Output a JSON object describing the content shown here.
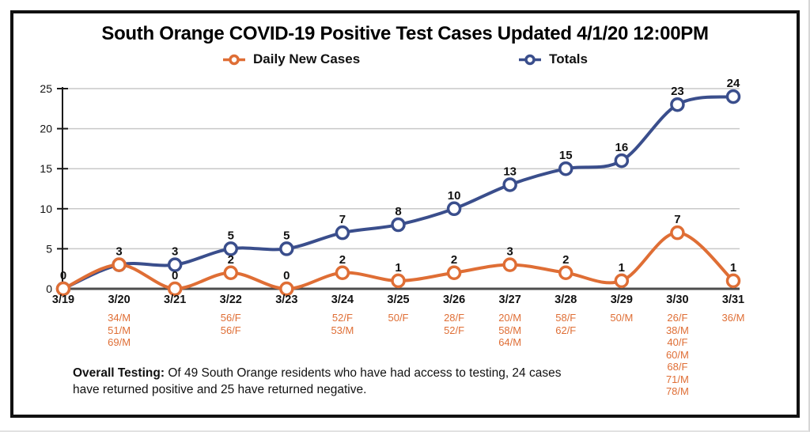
{
  "header": {
    "title": "South Orange COVID-19 Positive Test Cases Updated 4/1/20 12:00PM"
  },
  "chart_data": {
    "type": "line",
    "smooth": true,
    "grid": true,
    "legend_position": "top",
    "categories": [
      "3/19",
      "3/20",
      "3/21",
      "3/22",
      "3/23",
      "3/24",
      "3/25",
      "3/26",
      "3/27",
      "3/28",
      "3/29",
      "3/30",
      "3/31"
    ],
    "series": [
      {
        "name": "Daily New Cases",
        "color": "#df6e35",
        "values": [
          0,
          3,
          0,
          2,
          0,
          2,
          1,
          2,
          3,
          2,
          1,
          7,
          1
        ]
      },
      {
        "name": "Totals",
        "color": "#3a4e8c",
        "values": [
          0,
          3,
          3,
          5,
          5,
          7,
          8,
          10,
          13,
          15,
          16,
          23,
          24
        ]
      }
    ],
    "ylim": [
      0,
      25
    ],
    "yticks": [
      0,
      5,
      10,
      15,
      20,
      25
    ],
    "xlabel": "",
    "ylabel": "",
    "point_case_details": [
      [],
      [
        "34/M",
        "51/M",
        "69/M"
      ],
      [],
      [
        "56/F",
        "56/F"
      ],
      [],
      [
        "52/F",
        "53/M"
      ],
      [
        "50/F"
      ],
      [
        "28/F",
        "52/F"
      ],
      [
        "20/M",
        "58/M",
        "64/M"
      ],
      [
        "58/F",
        "62/F"
      ],
      [
        "50/M"
      ],
      [
        "26/F",
        "38/M",
        "40/F",
        "60/M",
        "68/F",
        "71/M",
        "78/M"
      ],
      [
        "36/M"
      ]
    ],
    "colors": {
      "gridline": "#c9c9c9",
      "x_axis": "#4d4d4d",
      "y_axis": "#1a1a1a",
      "label_text": "#111111"
    }
  },
  "note": {
    "label": "Overall Testing:",
    "text": "Of 49 South Orange residents who have had access to testing, 24 cases have returned positive and 25 have returned negative."
  }
}
